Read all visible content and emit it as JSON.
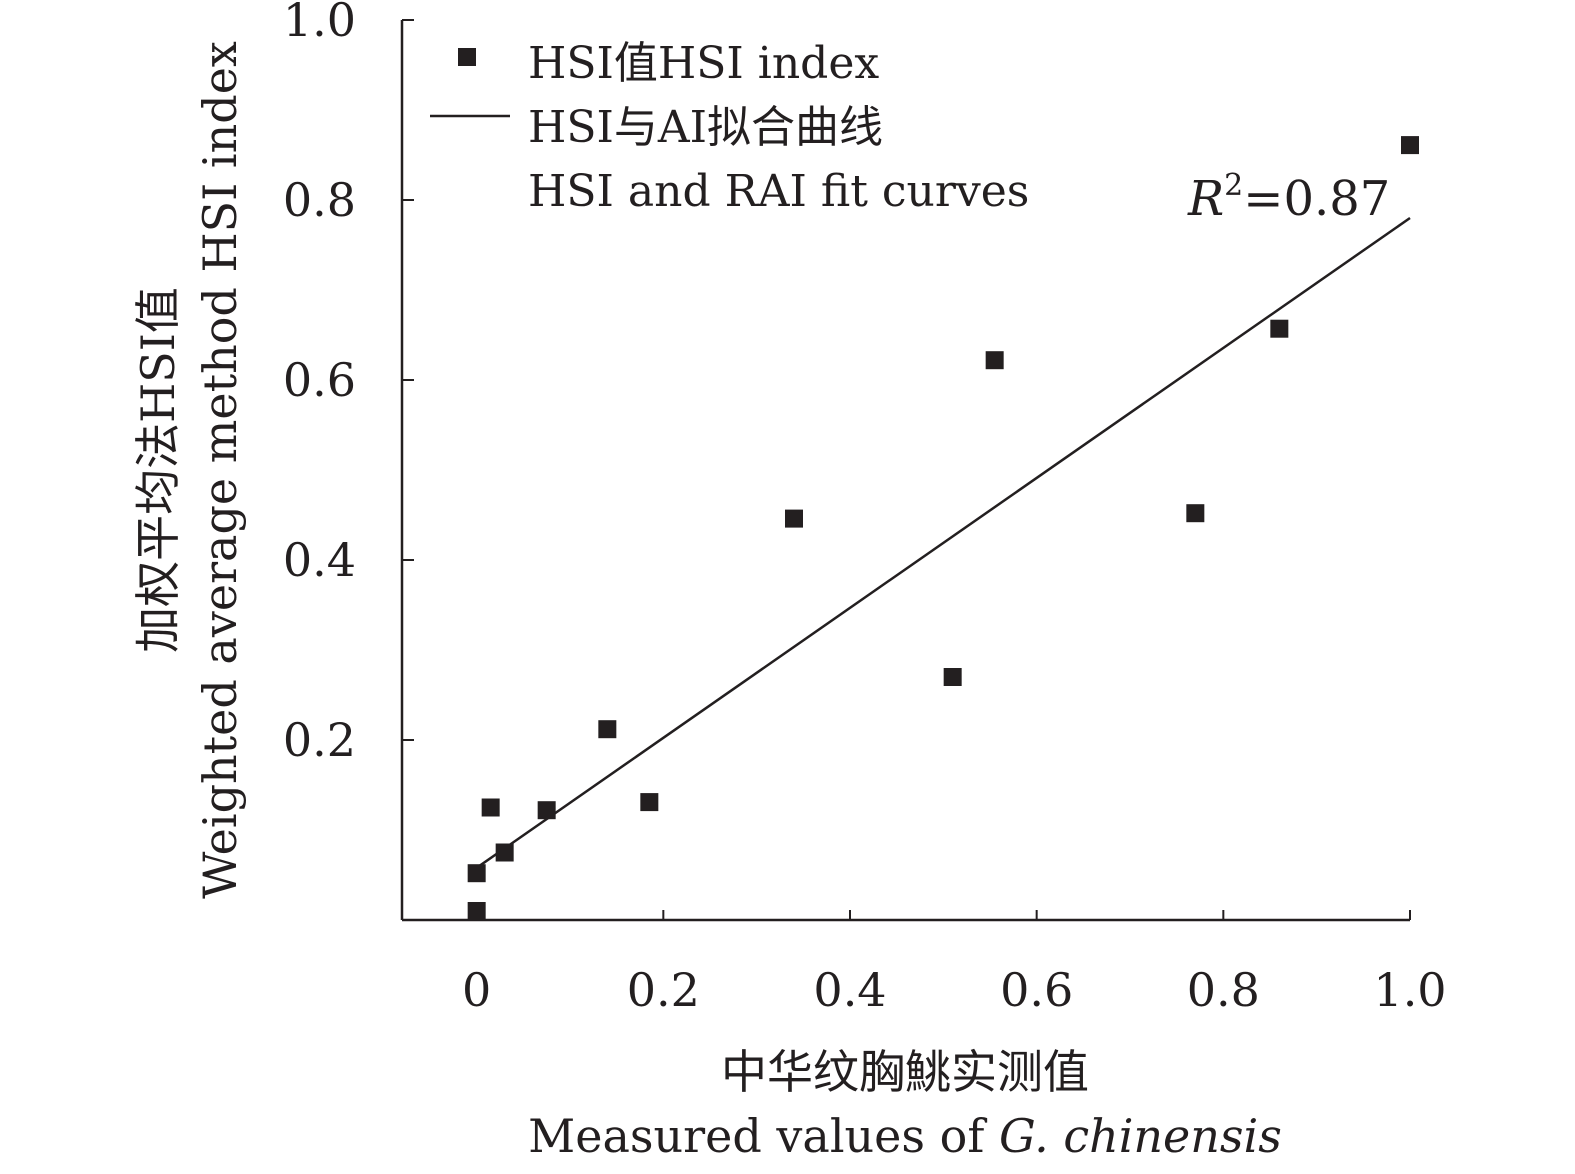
{
  "chart_data": {
    "type": "scatter",
    "xlim": [
      -0.08,
      1.0
    ],
    "ylim": [
      0.0,
      1.0
    ],
    "x_ticks": [
      0,
      0.2,
      0.4,
      0.6,
      0.8,
      1.0
    ],
    "x_tick_labels": [
      "0",
      "0.2",
      "0.4",
      "0.6",
      "0.8",
      "1.0"
    ],
    "y_ticks": [
      0.2,
      0.4,
      0.6,
      0.8,
      1.0
    ],
    "y_tick_labels": [
      "0.2",
      "0.4",
      "0.6",
      "0.8",
      "1.0"
    ],
    "xlabel_cn": "中华纹胸鮡实测值",
    "xlabel_en": "Measured values of ",
    "xlabel_en_italic": "G. chinensis",
    "ylabel_cn": "加权平均法HSI值",
    "ylabel_en": "Weighted average method HSI index",
    "series": [
      {
        "name": "HSI值HSI index",
        "type": "scatter",
        "marker": "square",
        "x": [
          0.0,
          0.0,
          0.015,
          0.03,
          0.075,
          0.14,
          0.185,
          0.34,
          0.51,
          0.555,
          0.77,
          0.86,
          1.0
        ],
        "y": [
          0.01,
          0.052,
          0.125,
          0.075,
          0.122,
          0.212,
          0.131,
          0.446,
          0.27,
          0.622,
          0.452,
          0.657,
          0.861
        ]
      },
      {
        "name": "HSI与AI拟合曲线",
        "name_line2": "HSI and RAI fit curves",
        "type": "line",
        "x": [
          0.0,
          1.0
        ],
        "y": [
          0.058,
          0.78
        ]
      }
    ],
    "annotation": {
      "italic": "R",
      "sup": "2",
      "text": "=0.87"
    },
    "legend_position": "top-left",
    "color": "#231f20"
  }
}
